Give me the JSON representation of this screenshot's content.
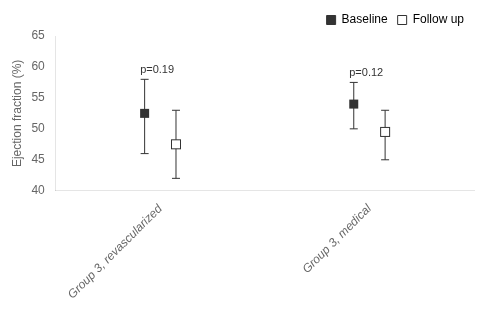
{
  "chart_data": {
    "type": "scatter",
    "categories": [
      "Group 3, revascularized",
      "Group 3, medical"
    ],
    "series": [
      {
        "name": "Baseline",
        "color": "#333333",
        "marker": "square",
        "values": [
          52.5,
          54.0
        ],
        "err_low": [
          6.5,
          4.0
        ],
        "err_high": [
          5.5,
          3.5
        ]
      },
      {
        "name": "Follow up",
        "color": "#333333",
        "marker": "open_square",
        "values": [
          47.5,
          49.5
        ],
        "err_low": [
          5.5,
          4.5
        ],
        "err_high": [
          5.5,
          3.5
        ]
      }
    ],
    "annotations": [
      {
        "text": "p=0.19",
        "category": "Group 3, revascularized",
        "series": "Baseline"
      },
      {
        "text": "p=0.12",
        "category": "Group 3, medical",
        "series": "Baseline"
      }
    ],
    "ylabel": "Ejection fraction (%)",
    "ylim": [
      40,
      65
    ],
    "yticks": [
      40,
      45,
      50,
      55,
      60,
      65
    ],
    "grid": false,
    "legend": "upper right"
  }
}
